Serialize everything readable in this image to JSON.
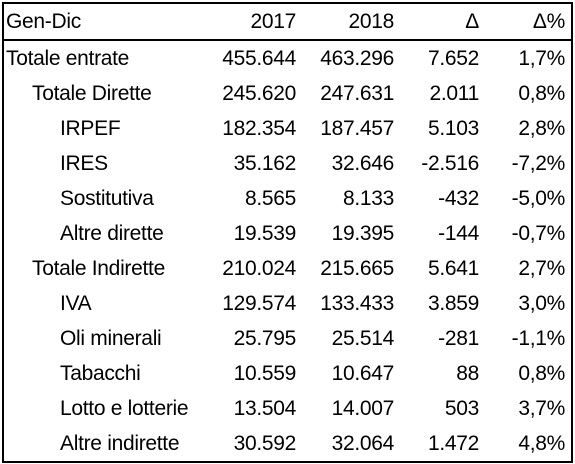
{
  "table": {
    "headers": [
      "Gen-Dic",
      "2017",
      "2018",
      "Δ",
      "Δ%"
    ],
    "rows": [
      {
        "label": "Totale entrate",
        "level": 0,
        "values": [
          "455.644",
          "463.296",
          "7.652",
          "1,7%"
        ]
      },
      {
        "label": "Totale Dirette",
        "level": 1,
        "values": [
          "245.620",
          "247.631",
          "2.011",
          "0,8%"
        ]
      },
      {
        "label": "IRPEF",
        "level": 2,
        "values": [
          "182.354",
          "187.457",
          "5.103",
          "2,8%"
        ]
      },
      {
        "label": "IRES",
        "level": 2,
        "values": [
          "35.162",
          "32.646",
          "-2.516",
          "-7,2%"
        ]
      },
      {
        "label": "Sostitutiva",
        "level": 2,
        "values": [
          "8.565",
          "8.133",
          "-432",
          "-5,0%"
        ]
      },
      {
        "label": "Altre dirette",
        "level": 2,
        "values": [
          "19.539",
          "19.395",
          "-144",
          "-0,7%"
        ]
      },
      {
        "label": "Totale Indirette",
        "level": 1,
        "values": [
          "210.024",
          "215.665",
          "5.641",
          "2,7%"
        ]
      },
      {
        "label": "IVA",
        "level": 2,
        "values": [
          "129.574",
          "133.433",
          "3.859",
          "3,0%"
        ]
      },
      {
        "label": "Oli minerali",
        "level": 2,
        "values": [
          "25.795",
          "25.514",
          "-281",
          "-1,1%"
        ]
      },
      {
        "label": "Tabacchi",
        "level": 2,
        "values": [
          "10.559",
          "10.647",
          "88",
          "0,8%"
        ]
      },
      {
        "label": "Lotto e lotterie",
        "level": 2,
        "values": [
          "13.504",
          "14.007",
          "503",
          "3,7%"
        ]
      },
      {
        "label": "Altre indirette",
        "level": 2,
        "values": [
          "30.592",
          "32.064",
          "1.472",
          "4,8%"
        ]
      }
    ]
  }
}
